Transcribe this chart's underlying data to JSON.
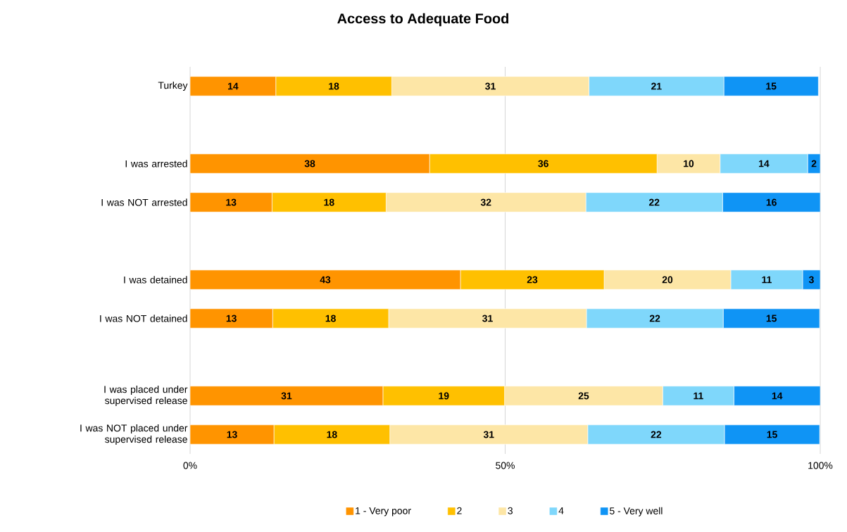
{
  "chart_data": {
    "type": "bar",
    "orientation": "horizontal",
    "stacked": true,
    "title": "Access to Adequate Food",
    "categories": [
      "Turkey",
      null,
      "I was arrested",
      "I was NOT arrested",
      null,
      "I was detained",
      "I was NOT detained",
      null,
      "I was placed under supervised release",
      "I was NOT placed under supervised release"
    ],
    "series": [
      {
        "name": "1 - Very poor",
        "color": "#ff9400",
        "values": [
          13.6,
          null,
          38.0,
          13.0,
          null,
          42.9,
          13.1,
          null,
          30.6,
          13.3
        ],
        "value_labels": [
          "14",
          null,
          "38",
          "13",
          null,
          "43",
          "13",
          null,
          "31",
          "13"
        ]
      },
      {
        "name": "2",
        "color": "#ffc000",
        "values": [
          18.4,
          null,
          36.1,
          18.1,
          null,
          22.8,
          18.4,
          null,
          19.3,
          18.4
        ],
        "value_labels": [
          "18",
          null,
          "36",
          "18",
          null,
          "23",
          "18",
          null,
          "19",
          "18"
        ]
      },
      {
        "name": "3",
        "color": "#fde6a6",
        "values": [
          31.3,
          null,
          10.0,
          31.7,
          null,
          20.1,
          31.4,
          null,
          25.1,
          31.4
        ],
        "value_labels": [
          "31",
          null,
          "10",
          "32",
          null,
          "20",
          "31",
          null,
          "25",
          "31"
        ]
      },
      {
        "name": "4",
        "color": "#7fd7fb",
        "values": [
          21.4,
          null,
          13.9,
          21.7,
          null,
          11.4,
          21.7,
          null,
          11.3,
          21.7
        ],
        "value_labels": [
          "21",
          null,
          "14",
          "22",
          null,
          "11",
          "22",
          null,
          "11",
          "22"
        ]
      },
      {
        "name": "5 - Very well",
        "color": "#0f94f5",
        "values": [
          15.0,
          null,
          2.0,
          15.5,
          null,
          2.8,
          15.3,
          null,
          13.7,
          15.1
        ],
        "value_labels": [
          "15",
          null,
          "2",
          "16",
          null,
          "3",
          "15",
          null,
          "14",
          "15"
        ]
      }
    ],
    "xlim": [
      0,
      100
    ],
    "xticks": [
      {
        "value": 0,
        "label": "0%"
      },
      {
        "value": 50,
        "label": "50%"
      },
      {
        "value": 100,
        "label": "100%"
      }
    ],
    "grid": "x",
    "legend": "bottom"
  }
}
